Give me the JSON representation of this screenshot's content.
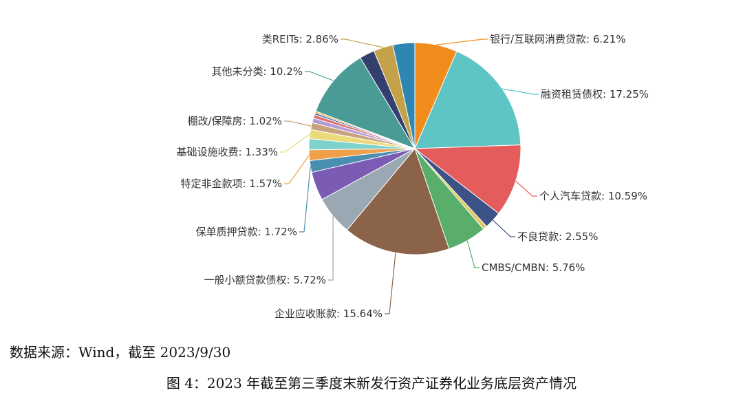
{
  "chart_data": {
    "type": "pie",
    "slices": [
      {
        "label": "银行/互联网消费贷款",
        "value": 6.21,
        "display": "银行/互联网消费贷款: 6.21%",
        "color": "#f28c1c"
      },
      {
        "label": "融资租赁债权",
        "value": 17.25,
        "display": "融资租赁债权: 17.25%",
        "color": "#5ec4c4"
      },
      {
        "label": "个人汽车贷款",
        "value": 10.59,
        "display": "个人汽车贷款: 10.59%",
        "color": "#e55c5c"
      },
      {
        "label": "不良贷款",
        "value": 2.55,
        "display": "不良贷款: 2.55%",
        "color": "#3d5287"
      },
      {
        "label": "",
        "value": 0.6,
        "display": "",
        "color": "#e0c95a"
      },
      {
        "label": "CMBS/CMBN",
        "value": 5.76,
        "display": "CMBS/CMBN: 5.76%",
        "color": "#5aae6c"
      },
      {
        "label": "企业应收账款",
        "value": 15.64,
        "display": "企业应收账款: 15.64%",
        "color": "#8a6349"
      },
      {
        "label": "一般小额贷款债权",
        "value": 5.72,
        "display": "一般小额贷款债权: 5.72%",
        "color": "#9aa8b3"
      },
      {
        "label": "",
        "value": 4.2,
        "display": "",
        "color": "#7b5cb5"
      },
      {
        "label": "保单质押贷款",
        "value": 1.72,
        "display": "保单质押贷款: 1.72%",
        "color": "#4b8fb0"
      },
      {
        "label": "特定非金款项",
        "value": 1.57,
        "display": "特定非金款项: 1.57%",
        "color": "#f0a04b"
      },
      {
        "label": "",
        "value": 1.6,
        "display": "",
        "color": "#7fd1cc"
      },
      {
        "label": "基础设施收费",
        "value": 1.33,
        "display": "基础设施收费: 1.33%",
        "color": "#ecd97a"
      },
      {
        "label": "棚改/保障房",
        "value": 1.02,
        "display": "棚改/保障房: 1.02%",
        "color": "#c7a27c"
      },
      {
        "label": "",
        "value": 0.7,
        "display": "",
        "color": "#b39ad6"
      },
      {
        "label": "",
        "value": 0.5,
        "display": "",
        "color": "#d96f6f"
      },
      {
        "label": "",
        "value": 0.3,
        "display": "",
        "color": "#5a6ea8"
      },
      {
        "label": "",
        "value": 0.25,
        "display": "",
        "color": "#e8b04b"
      },
      {
        "label": "其他未分类",
        "value": 10.2,
        "display": "其他未分类: 10.2%",
        "color": "#4a9a96"
      },
      {
        "label": "",
        "value": 2.2,
        "display": "",
        "color": "#33406e"
      },
      {
        "label": "类REITs",
        "value": 2.86,
        "display": "类REITs: 2.86%",
        "color": "#c4a24a"
      },
      {
        "label": "",
        "value": 3.2,
        "display": "",
        "color": "#2f86b3"
      }
    ]
  },
  "source_text": "数据来源：Wind，截至 2023/9/30",
  "caption_text": "图 4：2023 年截至第三季度末新发行资产证券化业务底层资产情况"
}
